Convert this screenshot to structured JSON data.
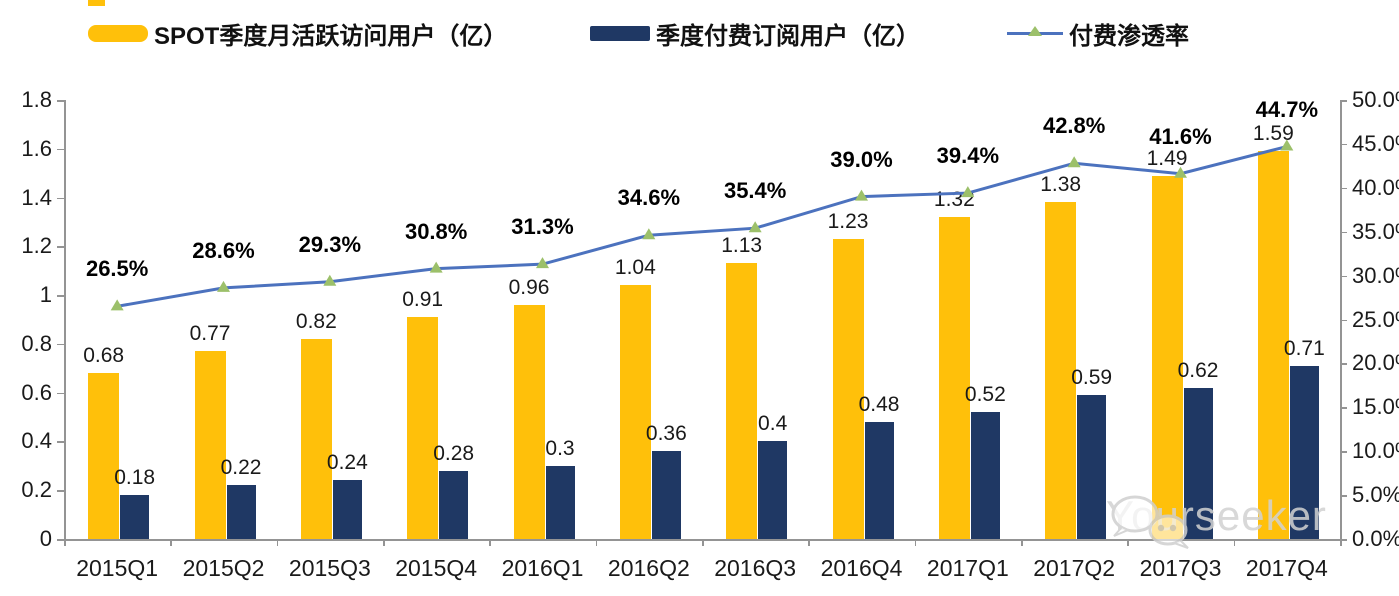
{
  "watermark": {
    "text": "Yourseeker"
  },
  "colors": {
    "mau_bar": "#FFC00A",
    "subs_bar": "#1F3864",
    "line": "#4C72BE",
    "marker": "#9CC06A",
    "axis": "#949494",
    "watermark_gray": "#d2d2d2"
  },
  "chart_data": {
    "type": "combo_bar_line",
    "title": "",
    "grid": false,
    "legend_position": "top",
    "categories": [
      "2015Q1",
      "2015Q2",
      "2015Q3",
      "2015Q4",
      "2016Q1",
      "2016Q2",
      "2016Q3",
      "2016Q4",
      "2017Q1",
      "2017Q2",
      "2017Q3",
      "2017Q4"
    ],
    "series": [
      {
        "name": "SPOT季度月活跃访问用户（亿）",
        "type": "bar",
        "axis": "left",
        "color": "#FFC00A",
        "values": [
          0.68,
          0.77,
          0.82,
          0.91,
          0.96,
          1.04,
          1.13,
          1.23,
          1.32,
          1.38,
          1.49,
          1.59
        ],
        "labels": [
          "0.68",
          "0.77",
          "0.82",
          "0.91",
          "0.96",
          "1.04",
          "1.13",
          "1.23",
          "1.32",
          "1.38",
          "1.49",
          "1.59"
        ]
      },
      {
        "name": "季度付费订阅用户（亿）",
        "type": "bar",
        "axis": "left",
        "color": "#1F3864",
        "values": [
          0.18,
          0.22,
          0.24,
          0.28,
          0.3,
          0.36,
          0.4,
          0.48,
          0.52,
          0.59,
          0.62,
          0.71
        ],
        "labels": [
          "0.18",
          "0.22",
          "0.24",
          "0.28",
          "0.3",
          "0.36",
          "0.4",
          "0.48",
          "0.52",
          "0.59",
          "0.62",
          "0.71"
        ]
      },
      {
        "name": "付费渗透率",
        "type": "line",
        "axis": "right",
        "color": "#4C72BE",
        "marker": "triangle",
        "marker_color": "#9CC06A",
        "values": [
          26.5,
          28.6,
          29.3,
          30.8,
          31.3,
          34.6,
          35.4,
          39.0,
          39.4,
          42.8,
          41.6,
          44.7
        ],
        "labels": [
          "26.5%",
          "28.6%",
          "29.3%",
          "30.8%",
          "31.3%",
          "34.6%",
          "35.4%",
          "39.0%",
          "39.4%",
          "42.8%",
          "41.6%",
          "44.7%"
        ]
      }
    ],
    "left_axis": {
      "min": 0,
      "max": 1.8,
      "ticks": [
        "1.8",
        "1.6",
        "1.4",
        "1.2",
        "1",
        "0.8",
        "0.6",
        "0.4",
        "0.2",
        "0"
      ]
    },
    "right_axis": {
      "min": 0,
      "max": 50,
      "ticks": [
        "50.0%",
        "45.0%",
        "40.0%",
        "35.0%",
        "30.0%",
        "25.0%",
        "20.0%",
        "15.0%",
        "10.0%",
        "5.0%",
        "0.0%"
      ]
    },
    "x_axis": {
      "labels": [
        "2015Q1",
        "2015Q2",
        "2015Q3",
        "2015Q4",
        "2016Q1",
        "2016Q2",
        "2016Q3",
        "2016Q4",
        "2017Q1",
        "2017Q2",
        "2017Q3",
        "2017Q4"
      ]
    }
  }
}
